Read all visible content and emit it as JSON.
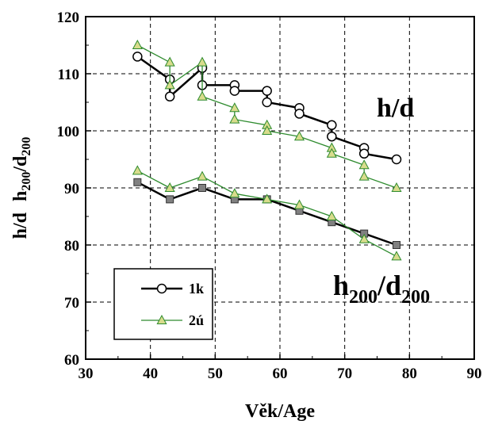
{
  "chart_data": {
    "type": "line",
    "xlabel": "Věk/Age",
    "ylabel_parts": [
      "h/d",
      "h",
      "200",
      "/d",
      "200"
    ],
    "xlim": [
      30,
      90
    ],
    "ylim": [
      60,
      120
    ],
    "x_ticks": [
      30,
      40,
      50,
      60,
      70,
      80,
      90
    ],
    "y_ticks": [
      60,
      70,
      80,
      90,
      100,
      110,
      120
    ],
    "grid": true,
    "legend_position": "bottom-left",
    "series": [
      {
        "name": "1k",
        "group": "h/d",
        "color": "#000000",
        "marker": "circle",
        "x": [
          38,
          43,
          43,
          48,
          48,
          53,
          53,
          58,
          58,
          63,
          63,
          68,
          68,
          73,
          73,
          78
        ],
        "y": [
          113,
          109,
          106,
          111,
          108,
          108,
          107,
          107,
          105,
          104,
          103,
          101,
          99,
          97,
          96,
          95
        ]
      },
      {
        "name": "2ú",
        "group": "h/d",
        "color": "#2e8b2e",
        "marker": "triangle",
        "x": [
          38,
          43,
          43,
          48,
          48,
          53,
          53,
          58,
          58,
          63,
          68,
          68,
          73,
          73,
          78
        ],
        "y": [
          115,
          112,
          108,
          112,
          106,
          104,
          102,
          101,
          100,
          99,
          97,
          96,
          94,
          92,
          90
        ]
      },
      {
        "name": "1k",
        "group": "h200/d200",
        "color": "#000000",
        "marker": "square",
        "x": [
          38,
          43,
          48,
          53,
          58,
          63,
          68,
          73,
          78
        ],
        "y": [
          91,
          88,
          90,
          88,
          88,
          86,
          84,
          82,
          80
        ]
      },
      {
        "name": "2ú",
        "group": "h200/d200",
        "color": "#2e8b2e",
        "marker": "triangle",
        "x": [
          38,
          43,
          48,
          53,
          58,
          63,
          68,
          73,
          78
        ],
        "y": [
          93,
          90,
          92,
          89,
          88,
          87,
          85,
          81,
          78
        ]
      }
    ],
    "annotations": {
      "hd": "h/d",
      "h200": {
        "h": "h",
        "sub1": "200",
        "slash_d": "/d",
        "sub2": "200"
      }
    },
    "legend": [
      {
        "label": "1k",
        "color": "#000000",
        "marker": "circle"
      },
      {
        "label": "2ú",
        "color": "#2e8b2e",
        "marker": "triangle"
      }
    ]
  }
}
